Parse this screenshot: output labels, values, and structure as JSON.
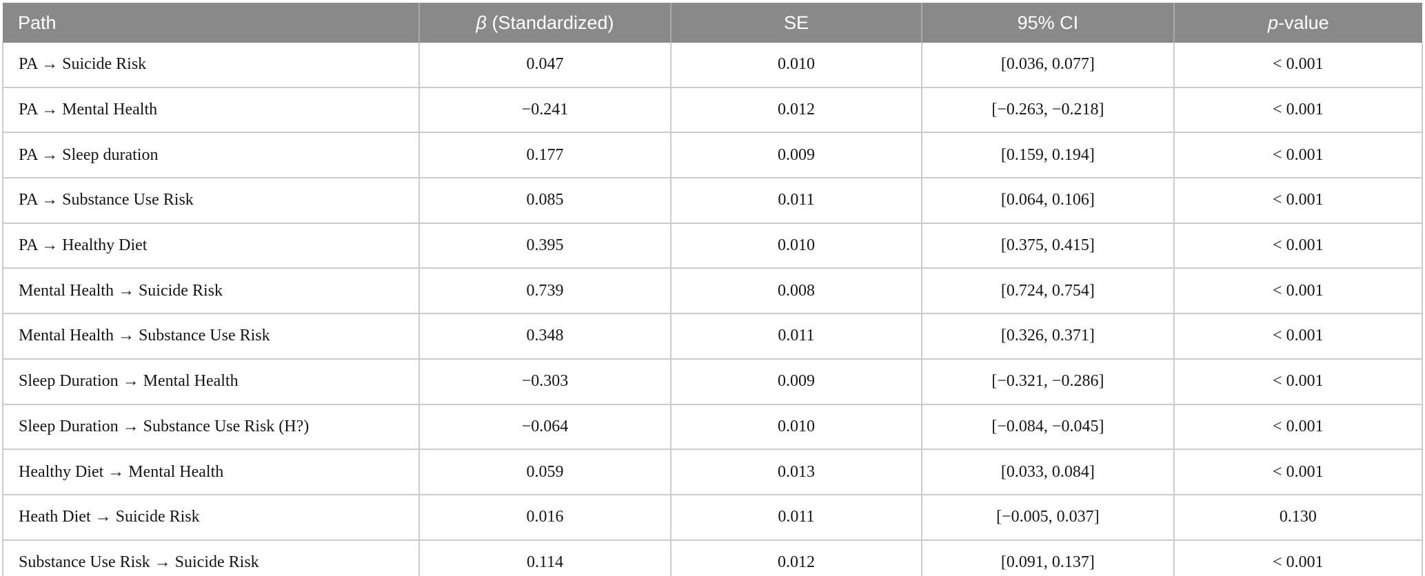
{
  "colors": {
    "header_bg": "#898989",
    "header_text": "#ffffff",
    "body_text": "#151515",
    "grid_line": "#cbcbcb",
    "page_bg": "#ffffff"
  },
  "table": {
    "columns": [
      {
        "id": "path",
        "label": "Path",
        "align": "left"
      },
      {
        "id": "beta",
        "label": "β (Standardized)",
        "label_parts": [
          {
            "text": "β",
            "italic": true
          },
          {
            "text": " (Standardized)"
          }
        ],
        "align": "center"
      },
      {
        "id": "se",
        "label": "SE",
        "align": "center"
      },
      {
        "id": "ci",
        "label": "95% CI",
        "align": "center"
      },
      {
        "id": "p",
        "label": "p-value",
        "label_parts": [
          {
            "text": "p",
            "italic": true
          },
          {
            "text": "-value"
          }
        ],
        "align": "center"
      }
    ],
    "rows": [
      {
        "cells": [
          "PA → Suicide Risk",
          "0.047",
          "0.010",
          "[0.036, 0.077]",
          "< 0.001"
        ]
      },
      {
        "cells": [
          "PA → Mental Health",
          "−0.241",
          "0.012",
          "[−0.263, −0.218]",
          "< 0.001"
        ]
      },
      {
        "cells": [
          "PA → Sleep duration",
          "0.177",
          "0.009",
          "[0.159, 0.194]",
          "< 0.001"
        ]
      },
      {
        "cells": [
          "PA → Substance Use Risk",
          "0.085",
          "0.011",
          "[0.064, 0.106]",
          "< 0.001"
        ]
      },
      {
        "cells": [
          "PA → Healthy Diet",
          "0.395",
          "0.010",
          "[0.375, 0.415]",
          "< 0.001"
        ]
      },
      {
        "cells": [
          "Mental Health → Suicide Risk",
          "0.739",
          "0.008",
          "[0.724, 0.754]",
          "< 0.001"
        ]
      },
      {
        "cells": [
          "Mental Health → Substance Use Risk",
          "0.348",
          "0.011",
          "[0.326, 0.371]",
          "< 0.001"
        ]
      },
      {
        "cells": [
          "Sleep Duration → Mental Health",
          "−0.303",
          "0.009",
          "[−0.321, −0.286]",
          "< 0.001"
        ]
      },
      {
        "cells": [
          "Sleep Duration → Substance Use Risk (H?)",
          "−0.064",
          "0.010",
          "[−0.084, −0.045]",
          "< 0.001"
        ]
      },
      {
        "cells": [
          "Healthy Diet → Mental Health",
          "0.059",
          "0.013",
          "[0.033, 0.084]",
          "< 0.001"
        ]
      },
      {
        "cells": [
          "Heath Diet → Suicide Risk",
          "0.016",
          "0.011",
          "[−0.005, 0.037]",
          "0.130"
        ]
      },
      {
        "cells": [
          "Substance Use Risk → Suicide Risk",
          "0.114",
          "0.012",
          "[0.091, 0.137]",
          "< 0.001"
        ]
      }
    ]
  }
}
